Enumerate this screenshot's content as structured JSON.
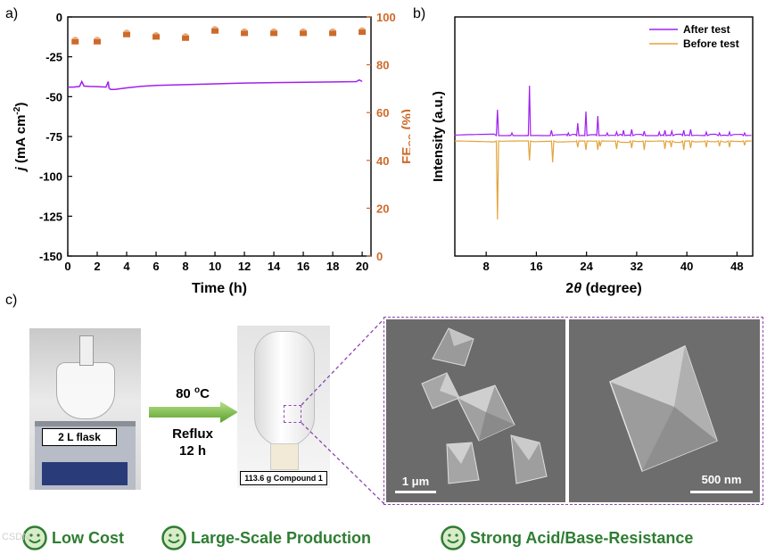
{
  "panel_labels": {
    "a": "a)",
    "b": "b)",
    "c": "c)"
  },
  "chart_data": [
    {
      "type": "scatter",
      "panel": "a",
      "title": "",
      "xlabel": "Time (h)",
      "ylabel_left": {
        "base": "j",
        "unit_pre": " (mA cm",
        "unit_sup": "-2",
        "unit_post": ")"
      },
      "ylabel_right": {
        "base": "FE",
        "sub": "CO",
        "unit": " (%)"
      },
      "x_ticks": [
        0,
        2,
        4,
        6,
        8,
        10,
        12,
        14,
        16,
        18,
        20
      ],
      "xlim": [
        0,
        20.6
      ],
      "y_left_ticks": [
        0,
        -25,
        -50,
        -75,
        -100,
        -125,
        -150
      ],
      "y_left_lim": [
        -150,
        0
      ],
      "y_right_ticks": [
        0,
        20,
        40,
        60,
        80,
        100
      ],
      "y_right_lim": [
        0,
        100
      ],
      "colors": {
        "current": "#a020f0",
        "fe": "#cd6a2a"
      },
      "series": [
        {
          "name": "current density",
          "axis": "left",
          "style": "line",
          "x": [
            0,
            0.4,
            0.8,
            0.95,
            1.1,
            1.5,
            2.0,
            2.6,
            2.75,
            2.8,
            2.9,
            3.2,
            4,
            5,
            6,
            8,
            10,
            12,
            14,
            16,
            18,
            19.6,
            19.8,
            20
          ],
          "y": [
            -44,
            -44,
            -43.6,
            -40.5,
            -43.4,
            -43.6,
            -43.7,
            -44,
            -40.5,
            -44.5,
            -45.5,
            -45.5,
            -44.5,
            -43.5,
            -43,
            -42.5,
            -42,
            -41.5,
            -41.2,
            -41,
            -40.8,
            -40.6,
            -39.5,
            -40.5
          ]
        },
        {
          "name": "FE CO",
          "axis": "right",
          "style": "marker",
          "x": [
            0.5,
            2,
            4,
            6,
            8,
            10,
            12,
            14,
            16,
            18,
            20
          ],
          "y": [
            90,
            90,
            93,
            92,
            91.5,
            94.5,
            93.5,
            93.5,
            93.5,
            93.5,
            94
          ]
        }
      ]
    },
    {
      "type": "line",
      "panel": "b",
      "xlabel": {
        "base": "2",
        "italic": "θ",
        "rest": " (degree)"
      },
      "ylabel": "Intensity (a.u.)",
      "x_ticks": [
        8,
        16,
        24,
        32,
        40,
        48
      ],
      "xlim": [
        3,
        50.5
      ],
      "colors": {
        "after": "#a020f0",
        "before": "#e3a43d"
      },
      "legend": {
        "position": "top-right",
        "entries": [
          "After test",
          "Before test"
        ]
      },
      "series": [
        {
          "name": "After test",
          "baseline": 0,
          "direction": "up",
          "peaks": [
            [
              9.8,
              29
            ],
            [
              12.1,
              3
            ],
            [
              14.9,
              56
            ],
            [
              18.4,
              6
            ],
            [
              21.1,
              3
            ],
            [
              22.6,
              14
            ],
            [
              23.9,
              27
            ],
            [
              25.8,
              22
            ],
            [
              27.3,
              3
            ],
            [
              28.8,
              4
            ],
            [
              29.9,
              6
            ],
            [
              31.2,
              7
            ],
            [
              33.2,
              5
            ],
            [
              35.6,
              4
            ],
            [
              36.5,
              6
            ],
            [
              37.6,
              5
            ],
            [
              39.5,
              6
            ],
            [
              40.6,
              7
            ],
            [
              43.1,
              4
            ],
            [
              45.2,
              3
            ],
            [
              46.8,
              4
            ],
            [
              49.2,
              3
            ]
          ]
        },
        {
          "name": "Before test",
          "baseline": 0,
          "direction": "down",
          "peaks": [
            [
              9.8,
              88
            ],
            [
              14.9,
              22
            ],
            [
              18.6,
              24
            ],
            [
              22.6,
              7
            ],
            [
              23.9,
              10
            ],
            [
              25.8,
              10
            ],
            [
              26.2,
              6
            ],
            [
              28.8,
              9
            ],
            [
              31.2,
              8
            ],
            [
              33.2,
              10
            ],
            [
              36.5,
              9
            ],
            [
              37.5,
              7
            ],
            [
              39.5,
              10
            ],
            [
              40.6,
              8
            ],
            [
              43.1,
              7
            ],
            [
              45.2,
              6
            ],
            [
              46.8,
              7
            ],
            [
              49.2,
              5
            ]
          ]
        }
      ]
    }
  ],
  "synthesis": {
    "flask_label": "2 L flask",
    "temperature": {
      "base": "80 ",
      "sup": "o",
      "rest": "C"
    },
    "process": "Reflux",
    "time": "12 h",
    "product_label": "113.6 g Compound  1",
    "scale_bar_left": "1 μm",
    "scale_bar_right": "500 nm"
  },
  "features": [
    "Low Cost",
    "Large-Scale Production",
    "Strong Acid/Base-Resistance"
  ],
  "feature_color": "#2e7d32",
  "watermark": "CSDN"
}
